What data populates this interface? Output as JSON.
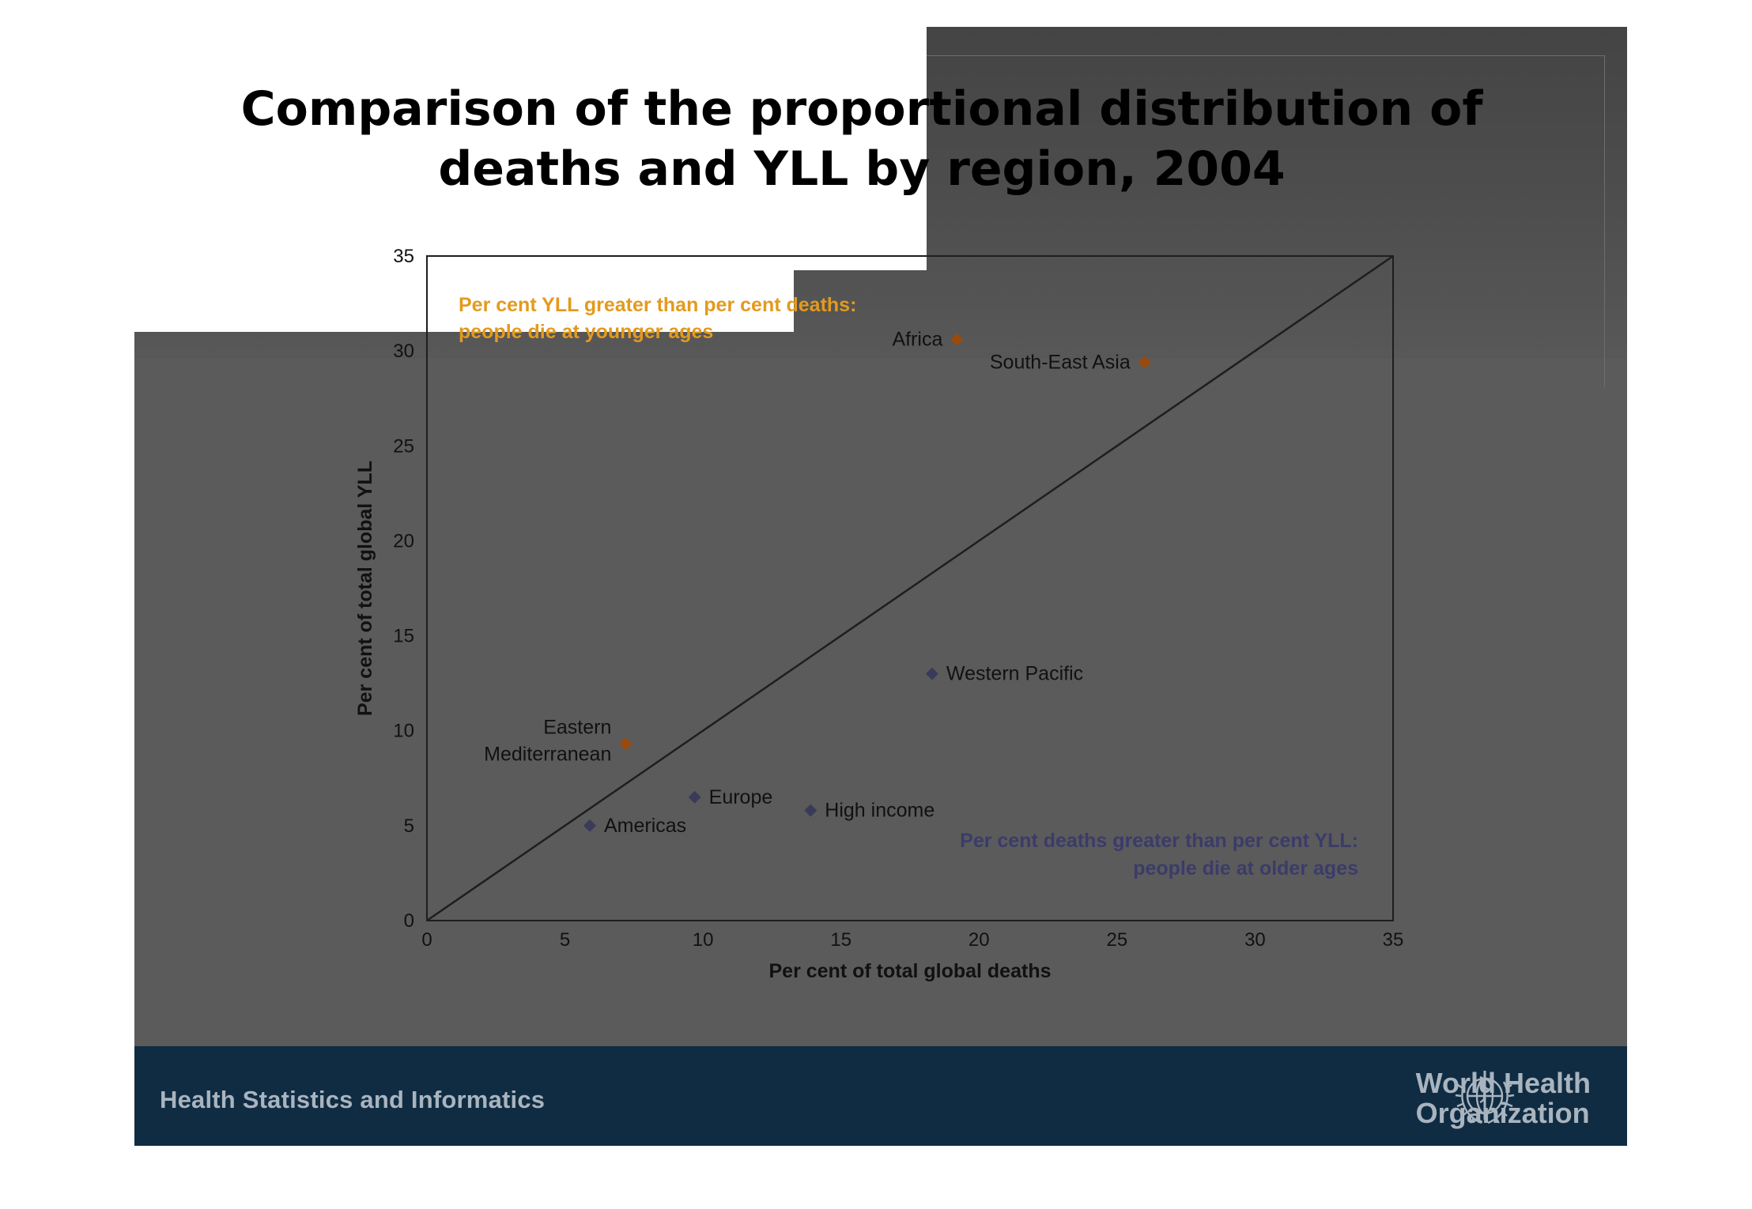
{
  "slide": {
    "title_line1": "Comparison of the proportional distribution of",
    "title_line2": "deaths and YLL by region, 2004",
    "footer_text": "Health Statistics and Informatics",
    "org_line1": "World Health",
    "org_line2": "Organization",
    "colors": {
      "footer": "#0f2c42",
      "slide_bg": "#5b5b5b",
      "above_diagonal": "#9b4a0c",
      "below_diagonal": "#3a3a5a",
      "annotation_above": "#e39a1e",
      "annotation_below": "#3b3b6b"
    },
    "icons": [
      "who-emblem-icon"
    ]
  },
  "chart_data": {
    "type": "scatter",
    "xlabel": "Per cent of total global deaths",
    "ylabel": "Per cent of total global YLL",
    "xlim": [
      0,
      35
    ],
    "ylim": [
      0,
      35
    ],
    "xticks": [
      "0",
      "5",
      "10",
      "15",
      "20",
      "25",
      "30",
      "35"
    ],
    "yticks": [
      "0",
      "5",
      "10",
      "15",
      "20",
      "25",
      "30",
      "35"
    ],
    "grid": false,
    "reference_line": {
      "from": [
        0,
        0
      ],
      "to": [
        35,
        35
      ]
    },
    "annotations": {
      "upper_left_line1": "Per cent YLL greater than per cent deaths:",
      "upper_left_line2": "people die at younger ages",
      "lower_right_line1": "Per cent deaths greater than per cent YLL:",
      "lower_right_line2": "people die at older ages"
    },
    "points": [
      {
        "label": [
          "Africa"
        ],
        "x": 19.2,
        "y": 30.6,
        "group": "above",
        "label_side": "left"
      },
      {
        "label": [
          "South-East Asia"
        ],
        "x": 26.0,
        "y": 29.4,
        "group": "above",
        "label_side": "left"
      },
      {
        "label": [
          "Eastern",
          "Mediterranean"
        ],
        "x": 7.2,
        "y": 9.3,
        "group": "above",
        "label_side": "left"
      },
      {
        "label": [
          "Western Pacific"
        ],
        "x": 18.3,
        "y": 13.0,
        "group": "below",
        "label_side": "right"
      },
      {
        "label": [
          "Europe"
        ],
        "x": 9.7,
        "y": 6.5,
        "group": "below",
        "label_side": "right"
      },
      {
        "label": [
          "High income"
        ],
        "x": 13.9,
        "y": 5.8,
        "group": "below",
        "label_side": "right"
      },
      {
        "label": [
          "Americas"
        ],
        "x": 5.9,
        "y": 5.0,
        "group": "below",
        "label_side": "right"
      }
    ]
  }
}
